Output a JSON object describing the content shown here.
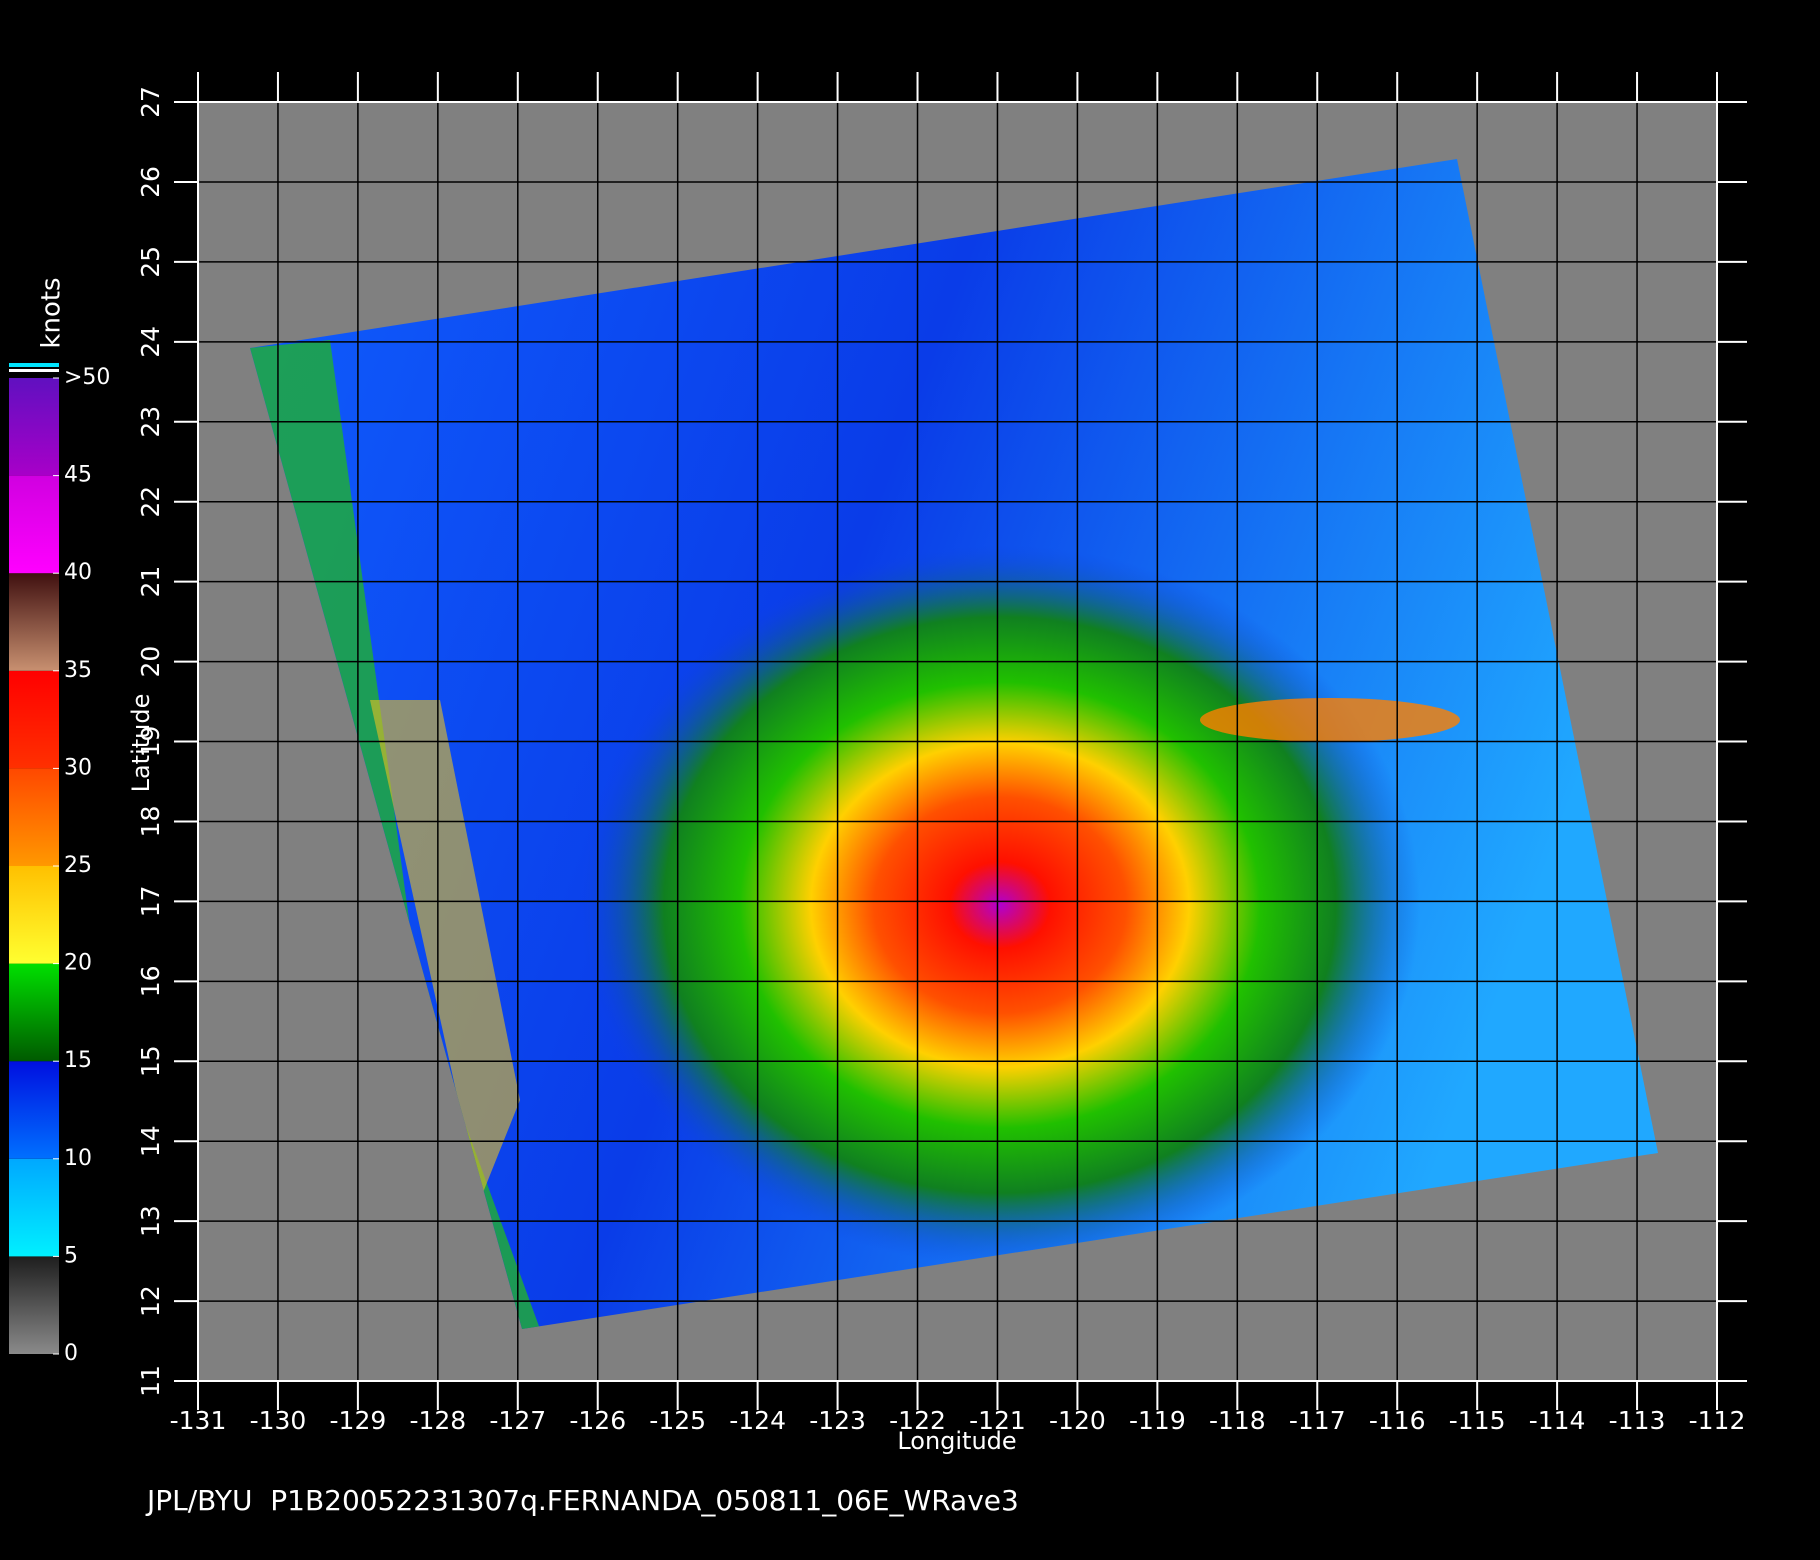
{
  "chart_data": {
    "type": "map",
    "xlabel": "Longitude",
    "ylabel": "Latitude",
    "xlim": [
      -131,
      -112
    ],
    "ylim": [
      11,
      27
    ],
    "xticks": [
      -131,
      -130,
      -129,
      -128,
      -127,
      -126,
      -125,
      -124,
      -123,
      -122,
      -121,
      -120,
      -119,
      -118,
      -117,
      -116,
      -115,
      -114,
      -113,
      -112
    ],
    "yticks": [
      11,
      12,
      13,
      14,
      15,
      16,
      17,
      18,
      19,
      20,
      21,
      22,
      23,
      24,
      25,
      26,
      27
    ],
    "grid": true,
    "colorbar": {
      "label": "knots",
      "lim": [
        0,
        50
      ],
      "ticks": [
        0,
        5,
        10,
        15,
        20,
        25,
        30,
        35,
        40,
        45,
        {
          "value": 50,
          "label": ">50"
        }
      ],
      "colors": [
        [
          "#8a8a8a",
          "#1e1e1e"
        ],
        [
          "#00f0ff",
          "#00a8ff"
        ],
        [
          "#0070ff",
          "#0010e0"
        ],
        [
          "#005a00",
          "#00e000"
        ],
        [
          "#ffff30",
          "#ffc000"
        ],
        [
          "#ff9800",
          "#ff4800"
        ],
        [
          "#ff3000",
          "#ff0000"
        ],
        [
          "#c89070",
          "#401010"
        ],
        [
          "#ff00ff",
          "#d000e0"
        ],
        [
          "#a800c8",
          "#6010c0"
        ]
      ]
    },
    "footer": "JPL/BYU  P1B20052231307q.FERNANDA_050811_06E_WRave3"
  }
}
